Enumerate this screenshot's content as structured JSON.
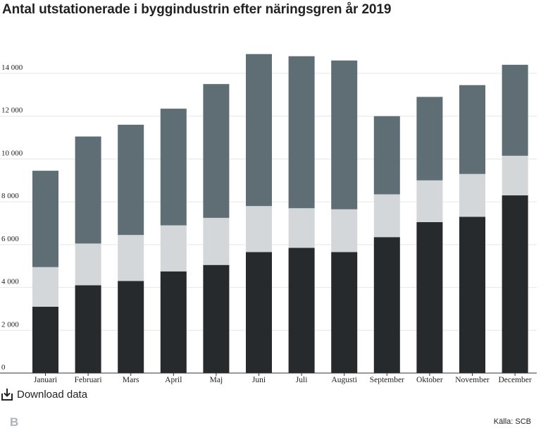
{
  "page": {
    "title": "Antal utstationerade i byggindustrin efter näringsgren år 2019",
    "download_label": "Download data",
    "source": "Källa: SCB",
    "logo_letter": "B"
  },
  "colors": {
    "bottom": "#262a2d",
    "middle": "#d3d7d9",
    "top": "#5f6e75",
    "grid": "#e6e6e6",
    "axis": "#333333",
    "text": "#222222"
  },
  "chart_data": {
    "type": "bar",
    "stacked": true,
    "categories": [
      "Januari",
      "Februari",
      "Mars",
      "April",
      "Maj",
      "Juni",
      "Juli",
      "Augusti",
      "September",
      "Oktober",
      "November",
      "December"
    ],
    "series": [
      {
        "values": [
          3100,
          4100,
          4300,
          4750,
          5050,
          5650,
          5850,
          5650,
          6350,
          7050,
          7300,
          8300
        ]
      },
      {
        "values": [
          1850,
          1950,
          2150,
          2150,
          2200,
          2150,
          1850,
          2000,
          2000,
          1950,
          2000,
          1850
        ]
      },
      {
        "values": [
          4500,
          5000,
          5150,
          5450,
          6250,
          7100,
          7100,
          6950,
          3650,
          3900,
          4150,
          4250
        ]
      }
    ],
    "ylim": [
      0,
      15000
    ],
    "yticks": [
      0,
      2000,
      4000,
      6000,
      8000,
      10000,
      12000,
      14000
    ],
    "ytick_labels": [
      "0",
      "2 000",
      "4 000",
      "6 000",
      "8 000",
      "10 000",
      "12 000",
      "14 000"
    ],
    "grid": true,
    "title": "Antal utstationerade i byggindustrin efter näringsgren år 2019",
    "xlabel": "",
    "ylabel": ""
  }
}
